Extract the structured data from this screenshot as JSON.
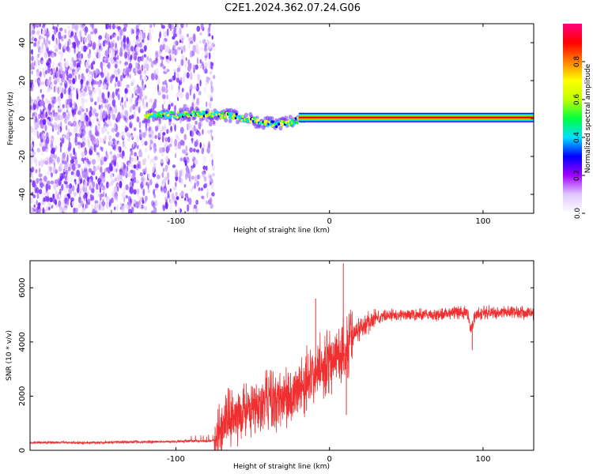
{
  "title": "C2E1.2024.362.07.24.G06",
  "chart_data": [
    {
      "type": "heatmap",
      "title": "C2E1.2024.362.07.24.G06",
      "xlabel": "Height of straight line (km)",
      "ylabel": "Frequency (Hz)",
      "xlim": [
        -195,
        133
      ],
      "ylim": [
        -50,
        50
      ],
      "xticks": [
        -100,
        0,
        100
      ],
      "yticks": [
        -40,
        -20,
        0,
        20,
        40
      ],
      "colorbar": {
        "label": "Normalized spectral amplitude",
        "range": [
          0,
          1
        ],
        "ticks": [
          "0.0",
          "0.2",
          "0.4",
          "0.6",
          "0.8"
        ],
        "colors": [
          "#ffffff",
          "#e0c8ff",
          "#a000ff",
          "#0000ff",
          "#00e0ff",
          "#00ff40",
          "#c0ff00",
          "#ffff00",
          "#ff8000",
          "#ff0000",
          "#ff0080"
        ]
      },
      "features": {
        "noise_region_x": [
          -195,
          -75
        ],
        "signal_start_x": -120,
        "strong_signal_start_x": -20,
        "signal_track": [
          {
            "x": -120,
            "y": 1.5
          },
          {
            "x": -100,
            "y": 2
          },
          {
            "x": -80,
            "y": 2.5
          },
          {
            "x": -65,
            "y": 1.5
          },
          {
            "x": -55,
            "y": 0
          },
          {
            "x": -40,
            "y": -2.5
          },
          {
            "x": -30,
            "y": -3
          },
          {
            "x": -20,
            "y": -1
          },
          {
            "x": -10,
            "y": 0.5
          },
          {
            "x": 0,
            "y": 0.5
          },
          {
            "x": 50,
            "y": 0.5
          },
          {
            "x": 133,
            "y": 0.5
          }
        ]
      }
    },
    {
      "type": "line",
      "xlabel": "Height of straight line (km)",
      "ylabel": "SNR (10 * v/v)",
      "xlim": [
        -195,
        133
      ],
      "ylim": [
        0,
        7000
      ],
      "xticks": [
        -100,
        0,
        100
      ],
      "yticks": [
        0,
        2000,
        4000,
        6000
      ],
      "color": "#f03030",
      "series": [
        {
          "x": [
            -195,
            -180,
            -160,
            -140,
            -120,
            -100,
            -90,
            -80,
            -75,
            -70,
            -65,
            -60,
            -55,
            -50,
            -45,
            -40,
            -35,
            -30,
            -25,
            -20,
            -15,
            -10,
            -5,
            0,
            5,
            10,
            15,
            20,
            25,
            30,
            40,
            50,
            60,
            70,
            80,
            90,
            92,
            95,
            100,
            110,
            120,
            133
          ],
          "y": [
            280,
            290,
            280,
            300,
            310,
            320,
            350,
            330,
            380,
            800,
            1200,
            1300,
            1500,
            1400,
            1700,
            1900,
            1700,
            2100,
            1900,
            2300,
            2500,
            2700,
            3100,
            3300,
            3500,
            3600,
            4200,
            4500,
            4700,
            4900,
            5000,
            5000,
            5000,
            5000,
            5100,
            5100,
            4400,
            5000,
            5100,
            5100,
            5100,
            5050
          ]
        }
      ],
      "annotations": [
        {
          "x": 9,
          "y": 6900
        },
        {
          "x": -9,
          "y": 5600
        },
        {
          "x": 11,
          "y": 1300
        },
        {
          "x": 93,
          "y": 3700
        }
      ]
    }
  ]
}
